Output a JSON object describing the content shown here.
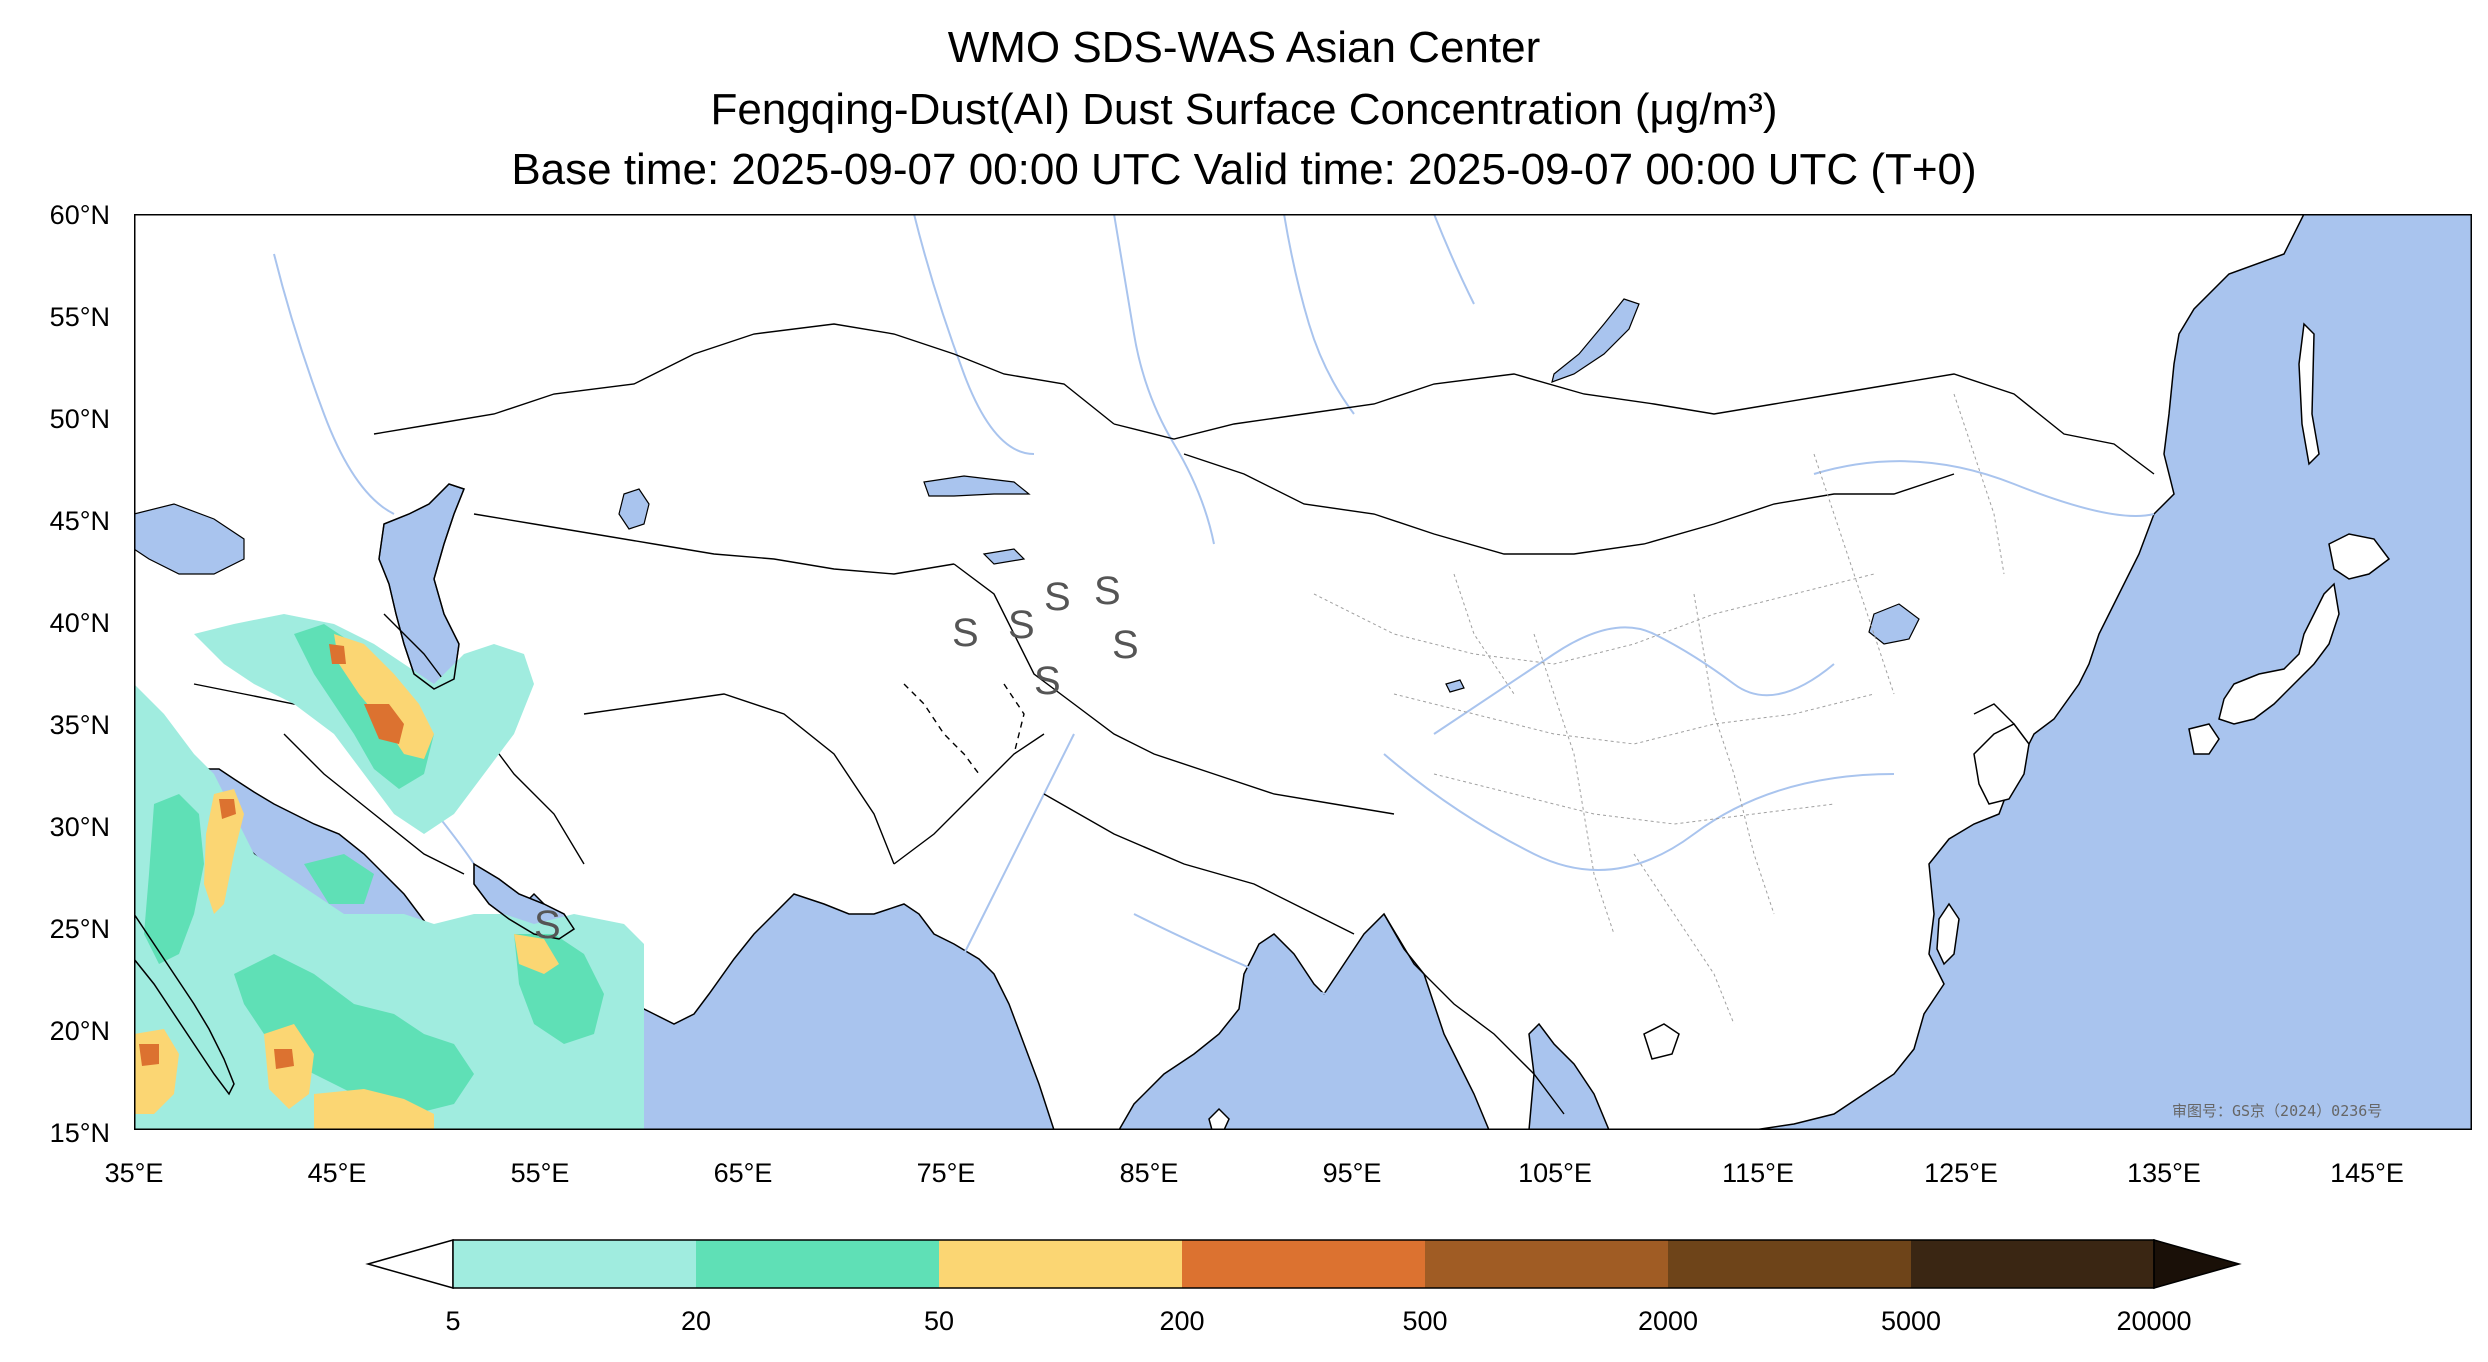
{
  "title": {
    "line1": "WMO SDS-WAS Asian Center",
    "line2": "Fengqing-Dust(AI) Dust Surface Concentration (μg/m³)",
    "line3": "Base time: 2025-09-07 00:00 UTC Valid time: 2025-09-07 00:00 UTC (T+0)"
  },
  "map": {
    "extent": {
      "lon": [
        35,
        150
      ],
      "lat": [
        15,
        60
      ]
    },
    "lat_ticks": [
      "60°N",
      "55°N",
      "50°N",
      "45°N",
      "40°N",
      "35°N",
      "30°N",
      "25°N",
      "20°N",
      "15°N"
    ],
    "lon_ticks": [
      "35°E",
      "45°E",
      "55°E",
      "65°E",
      "75°E",
      "85°E",
      "95°E",
      "105°E",
      "115°E",
      "125°E",
      "135°E",
      "145°E"
    ],
    "colors": {
      "ocean": "#a9c4ee",
      "land": "#ffffff",
      "river": "#a9c4ee",
      "border": "#000000"
    },
    "stamp": "审图号：GS京（2024）0236号",
    "weather_symbol": "S"
  },
  "colorbar": {
    "levels": [
      "5",
      "20",
      "50",
      "200",
      "500",
      "2000",
      "5000",
      "20000"
    ],
    "colors": [
      "#a0ecdf",
      "#5fe0b6",
      "#fbd673",
      "#dc7230",
      "#a05c24",
      "#6e4419",
      "#3a2613"
    ],
    "extend_low_color": "#ffffff",
    "extend_high_color": "#1a1008"
  }
}
